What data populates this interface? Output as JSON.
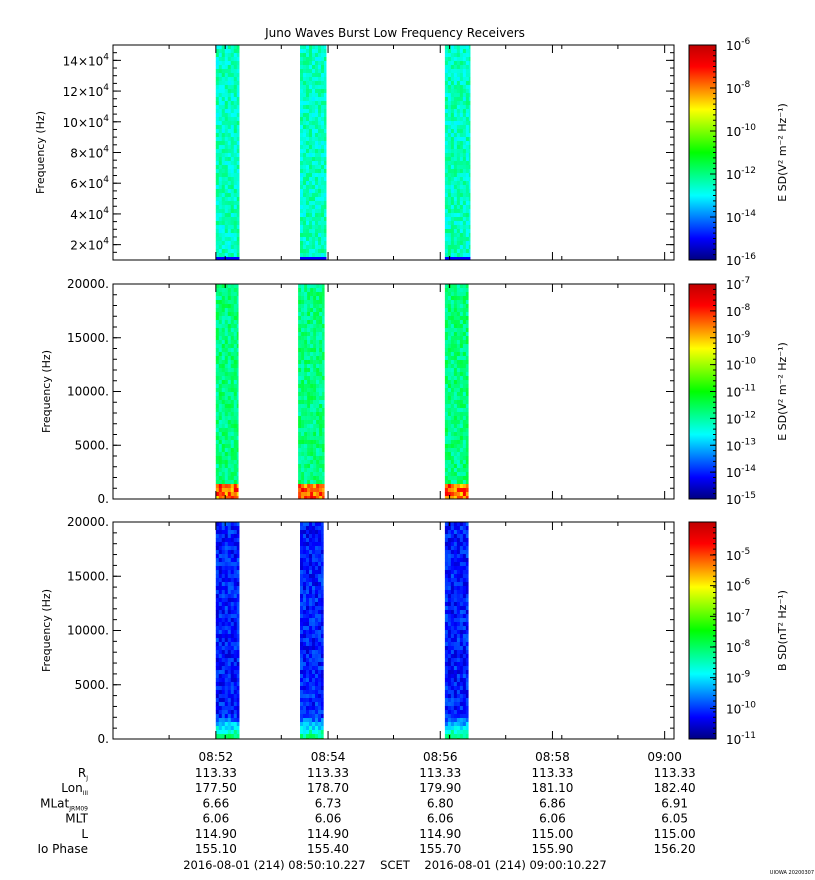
{
  "title": "Juno Waves Burst Low Frequency Receivers",
  "time_range_text": "2016-08-01 (214) 08:50:10.227    SCET    2016-08-01 (214) 09:00:10.227",
  "footer_tag": "UIOWA 20200307",
  "colors": {
    "colormap": [
      "#000080",
      "#0000ff",
      "#0080ff",
      "#00ffff",
      "#00ff80",
      "#00ff00",
      "#80ff00",
      "#ffff00",
      "#ff8000",
      "#ff0000",
      "#c00000"
    ]
  },
  "chart_data": [
    {
      "type": "heatmap",
      "title": "",
      "xlabel": "",
      "ylabel": "Frequency (Hz)",
      "yunit_scale": "x10^4",
      "ylim": [
        10000,
        150000
      ],
      "yticks": [
        20000,
        40000,
        60000,
        80000,
        100000,
        120000,
        140000
      ],
      "ytick_labels": [
        {
          "base": "2×10",
          "exp": "4"
        },
        {
          "base": "4×10",
          "exp": "4"
        },
        {
          "base": "6×10",
          "exp": "4"
        },
        {
          "base": "8×10",
          "exp": "4"
        },
        {
          "base": "10×10",
          "exp": "4"
        },
        {
          "base": "12×10",
          "exp": "4"
        },
        {
          "base": "14×10",
          "exp": "4"
        }
      ],
      "colorbar": {
        "label": "E SD(V² m⁻² Hz⁻¹)",
        "scale": "log",
        "range": [
          1e-16,
          1e-06
        ],
        "tick_labels": [
          {
            "base": "10",
            "exp": "-6"
          },
          {
            "base": "10",
            "exp": "-8"
          },
          {
            "base": "10",
            "exp": "-10"
          },
          {
            "base": "10",
            "exp": "-12"
          },
          {
            "base": "10",
            "exp": "-14"
          },
          {
            "base": "10",
            "exp": "-16"
          }
        ]
      },
      "bursts": [
        {
          "start": "08:52:00",
          "end": "08:52:25",
          "level": 0.35
        },
        {
          "start": "08:53:30",
          "end": "08:53:58",
          "level": 0.35
        },
        {
          "start": "08:56:05",
          "end": "08:56:32",
          "level": 0.35
        }
      ]
    },
    {
      "type": "heatmap",
      "title": "",
      "xlabel": "",
      "ylabel": "Frequency (Hz)",
      "ylim": [
        0,
        20000
      ],
      "yticks": [
        0,
        5000,
        10000,
        15000,
        20000
      ],
      "ytick_labels": [
        "0.",
        "5000.",
        "10000.",
        "15000.",
        "20000."
      ],
      "colorbar": {
        "label": "E SD(V² m⁻² Hz⁻¹)",
        "scale": "log",
        "range": [
          1e-15,
          1e-07
        ],
        "tick_labels": [
          {
            "base": "10",
            "exp": "-7"
          },
          {
            "base": "10",
            "exp": "-8"
          },
          {
            "base": "10",
            "exp": "-9"
          },
          {
            "base": "10",
            "exp": "-10"
          },
          {
            "base": "10",
            "exp": "-11"
          },
          {
            "base": "10",
            "exp": "-12"
          },
          {
            "base": "10",
            "exp": "-13"
          },
          {
            "base": "10",
            "exp": "-14"
          },
          {
            "base": "10",
            "exp": "-15"
          }
        ]
      },
      "bursts": [
        {
          "start": "08:52:00",
          "end": "08:52:24",
          "level": 0.4
        },
        {
          "start": "08:53:28",
          "end": "08:53:56",
          "level": 0.4
        },
        {
          "start": "08:56:05",
          "end": "08:56:30",
          "level": 0.4
        }
      ]
    },
    {
      "type": "heatmap",
      "title": "",
      "xlabel": "",
      "ylabel": "Frequency (Hz)",
      "ylim": [
        0,
        20000
      ],
      "yticks": [
        0,
        5000,
        10000,
        15000,
        20000
      ],
      "ytick_labels": [
        "0.",
        "5000.",
        "10000.",
        "15000.",
        "20000."
      ],
      "colorbar": {
        "label": "B SD(nT² Hz⁻¹)",
        "scale": "log",
        "range": [
          1e-11,
          0.0001
        ],
        "tick_labels": [
          {
            "base": "10",
            "exp": "-5"
          },
          {
            "base": "10",
            "exp": "-6"
          },
          {
            "base": "10",
            "exp": "-7"
          },
          {
            "base": "10",
            "exp": "-8"
          },
          {
            "base": "10",
            "exp": "-9"
          },
          {
            "base": "10",
            "exp": "-10"
          },
          {
            "base": "10",
            "exp": "-11"
          }
        ]
      },
      "bursts": [
        {
          "start": "08:52:00",
          "end": "08:52:25",
          "level": 0.12
        },
        {
          "start": "08:53:30",
          "end": "08:53:55",
          "level": 0.12
        },
        {
          "start": "08:56:05",
          "end": "08:56:30",
          "level": 0.12
        }
      ]
    }
  ],
  "x_axis": {
    "range": [
      "08:50:10",
      "09:00:10"
    ],
    "ticks": [
      "08:52",
      "08:54",
      "08:56",
      "08:58",
      "09:00"
    ],
    "tick_times": [
      "08:52:00",
      "08:54:00",
      "08:56:00",
      "08:58:00",
      "09:00:00"
    ]
  },
  "ephemeris": {
    "rows": [
      {
        "label": "R",
        "sub": "J",
        "values": [
          "113.33",
          "113.33",
          "113.33",
          "113.33",
          "113.33"
        ]
      },
      {
        "label": "Lon",
        "sub": "III",
        "values": [
          "177.50",
          "178.70",
          "179.90",
          "181.10",
          "182.40"
        ]
      },
      {
        "label": "MLat",
        "sub": "JRM09",
        "values": [
          "6.66",
          "6.73",
          "6.80",
          "6.86",
          "6.91"
        ]
      },
      {
        "label": "MLT",
        "sub": "",
        "values": [
          "6.06",
          "6.06",
          "6.06",
          "6.06",
          "6.05"
        ]
      },
      {
        "label": "L",
        "sub": "",
        "values": [
          "114.90",
          "114.90",
          "114.90",
          "115.00",
          "115.00"
        ]
      },
      {
        "label": "Io Phase",
        "sub": "",
        "values": [
          "155.10",
          "155.40",
          "155.70",
          "155.90",
          "156.20"
        ]
      }
    ]
  }
}
